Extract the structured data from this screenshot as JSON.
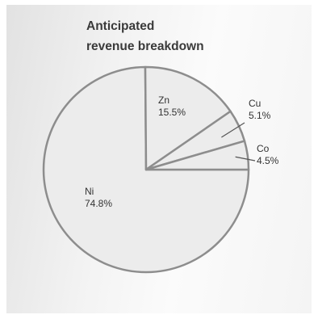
{
  "chart_data": {
    "type": "pie",
    "title": "Anticipated\nrevenue breakdown",
    "slices": [
      {
        "label": "Ni",
        "value": 74.8,
        "value_text": "74.8%"
      },
      {
        "label": "Zn",
        "value": 15.5,
        "value_text": "15.5%"
      },
      {
        "label": "Cu",
        "value": 5.1,
        "value_text": "5.1%"
      },
      {
        "label": "Co",
        "value": 4.5,
        "value_text": "4.5%"
      }
    ],
    "legend": "none",
    "colors": {
      "fill": "#ececec",
      "stroke": "#8d8d8d",
      "title": "#3a3a3a",
      "text": "#333333"
    }
  }
}
